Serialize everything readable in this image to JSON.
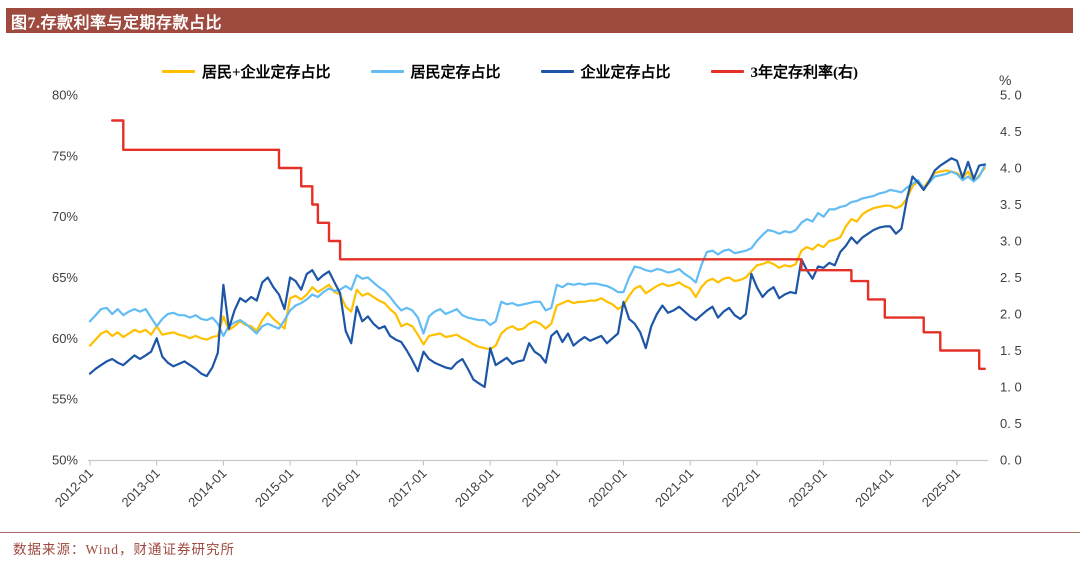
{
  "header": {
    "title": "图7.存款利率与定期存款占比",
    "bg_color": "#9E4A3F",
    "text_color": "#FFFFFF"
  },
  "footer": {
    "source_label": "数据来源：Wind，财通证券研究所",
    "color": "#9E4A3F"
  },
  "chart_data": {
    "type": "line",
    "title": "图7.存款利率与定期存款占比",
    "x_start": "2012-01",
    "x_end": "2025-06",
    "x_tick_labels": [
      "2012-01",
      "2013-01",
      "2014-01",
      "2015-01",
      "2016-01",
      "2017-01",
      "2018-01",
      "2019-01",
      "2020-01",
      "2021-01",
      "2022-01",
      "2023-01",
      "2024-01",
      "2025-01"
    ],
    "left_axis": {
      "ticks": [
        "80%",
        "75%",
        "70%",
        "65%",
        "60%",
        "55%",
        "50%"
      ],
      "tick_values": [
        80,
        75,
        70,
        65,
        60,
        55,
        50
      ],
      "min": 50,
      "max": 80
    },
    "right_axis": {
      "unit_label": "%",
      "ticks": [
        "5. 0",
        "4. 5",
        "4. 0",
        "3. 5",
        "3. 0",
        "2. 5",
        "2. 0",
        "1. 5",
        "1. 0",
        "0. 5",
        "0. 0"
      ],
      "tick_values": [
        5.0,
        4.5,
        4.0,
        3.5,
        3.0,
        2.5,
        2.0,
        1.5,
        1.0,
        0.5,
        0.0
      ],
      "min": 0,
      "max": 5
    },
    "grid": "off",
    "legend_position": "top",
    "legend": [
      {
        "id": "combined",
        "label": "居民+企业定存占比",
        "color": "#FFC000"
      },
      {
        "id": "resident",
        "label": "居民定存占比",
        "color": "#63BCF3"
      },
      {
        "id": "enterprise",
        "label": "企业定存占比",
        "color": "#1D56A6"
      },
      {
        "id": "rate3y",
        "label": "3年定存利率(右)",
        "color": "#E43026"
      }
    ],
    "series": [
      {
        "id": "combined",
        "name": "居民+企业定存占比",
        "axis": "left",
        "color": "#FFC000",
        "start_month_index": 0,
        "values": [
          59.4,
          59.9,
          60.4,
          60.6,
          60.2,
          60.5,
          60.1,
          60.4,
          60.7,
          60.5,
          60.7,
          60.3,
          61.0,
          60.3,
          60.4,
          60.5,
          60.3,
          60.2,
          60.0,
          60.2,
          60.0,
          59.9,
          60.1,
          60.2,
          61.8,
          60.7,
          61.0,
          61.4,
          61.1,
          61.0,
          60.6,
          61.5,
          62.1,
          61.6,
          61.2,
          60.8,
          63.3,
          63.5,
          63.2,
          63.6,
          64.2,
          63.8,
          64.1,
          64.4,
          63.8,
          63.6,
          62.6,
          62.2,
          64.0,
          63.5,
          63.7,
          63.4,
          63.1,
          62.9,
          62.4,
          62.0,
          61.0,
          61.2,
          61.0,
          60.3,
          59.5,
          60.2,
          60.3,
          60.4,
          60.1,
          60.2,
          60.3,
          60.0,
          59.8,
          59.5,
          59.3,
          59.2,
          59.1,
          59.4,
          60.4,
          60.8,
          61.0,
          60.7,
          60.8,
          61.2,
          61.4,
          61.2,
          60.8,
          61.2,
          62.7,
          62.9,
          63.1,
          62.9,
          63.0,
          63.0,
          63.1,
          63.1,
          63.3,
          63.0,
          62.8,
          62.4,
          62.7,
          63.5,
          64.1,
          64.3,
          63.7,
          64.0,
          64.3,
          64.5,
          64.3,
          64.4,
          64.6,
          64.3,
          64.1,
          63.4,
          64.2,
          64.7,
          64.9,
          64.6,
          64.9,
          65.0,
          64.7,
          64.8,
          65.0,
          65.5,
          66.0,
          66.1,
          66.3,
          66.1,
          65.8,
          66.0,
          65.9,
          66.1,
          67.2,
          67.5,
          67.3,
          67.7,
          67.5,
          68.0,
          68.1,
          68.3,
          69.2,
          69.8,
          69.6,
          70.2,
          70.5,
          70.7,
          70.8,
          70.9,
          70.9,
          70.7,
          70.9,
          71.5,
          72.5,
          72.9,
          72.4,
          73.0,
          73.6,
          73.7,
          73.8,
          73.7,
          73.6,
          73.2,
          73.7,
          72.9,
          73.4,
          74.0
        ]
      },
      {
        "id": "resident",
        "name": "居民定存占比",
        "axis": "left",
        "color": "#63BCF3",
        "start_month_index": 0,
        "values": [
          61.4,
          61.9,
          62.4,
          62.5,
          62.0,
          62.4,
          61.9,
          62.2,
          62.4,
          62.2,
          62.4,
          61.7,
          61.0,
          61.6,
          62.0,
          62.1,
          61.9,
          61.9,
          61.7,
          61.9,
          61.6,
          61.5,
          61.7,
          61.2,
          60.2,
          61.0,
          61.3,
          61.5,
          61.2,
          60.8,
          60.4,
          61.0,
          61.2,
          61.0,
          60.8,
          61.5,
          62.3,
          62.7,
          62.9,
          63.2,
          63.6,
          63.4,
          63.8,
          64.1,
          63.9,
          64.0,
          64.3,
          64.0,
          65.2,
          64.9,
          65.0,
          64.6,
          64.2,
          63.9,
          63.4,
          62.8,
          62.3,
          62.5,
          62.3,
          61.7,
          60.4,
          61.8,
          62.2,
          62.4,
          62.0,
          62.2,
          62.4,
          61.9,
          61.7,
          61.6,
          61.5,
          61.5,
          61.1,
          61.4,
          63.0,
          62.8,
          62.9,
          62.7,
          62.8,
          62.9,
          63.0,
          63.0,
          62.3,
          62.5,
          64.4,
          64.2,
          64.5,
          64.4,
          64.5,
          64.4,
          64.5,
          64.5,
          64.4,
          64.3,
          64.1,
          63.8,
          63.8,
          65.0,
          65.9,
          65.8,
          65.6,
          65.5,
          65.7,
          65.6,
          65.4,
          65.5,
          65.7,
          65.3,
          65.0,
          64.6,
          66.0,
          67.1,
          67.2,
          66.9,
          67.2,
          67.3,
          67.0,
          67.1,
          67.2,
          67.4,
          68.0,
          68.5,
          68.9,
          68.8,
          68.6,
          68.8,
          68.7,
          68.9,
          69.5,
          69.8,
          69.6,
          70.3,
          70.0,
          70.6,
          70.6,
          70.8,
          70.9,
          71.2,
          71.3,
          71.5,
          71.6,
          71.7,
          71.9,
          72.0,
          72.2,
          72.1,
          72.0,
          72.4,
          72.7,
          73.0,
          72.3,
          72.8,
          73.3,
          73.4,
          73.5,
          73.7,
          73.5,
          73.0,
          73.3,
          72.9,
          73.3,
          74.2
        ]
      },
      {
        "id": "enterprise",
        "name": "企业定存占比",
        "axis": "left",
        "color": "#1D56A6",
        "start_month_index": 0,
        "values": [
          57.1,
          57.5,
          57.8,
          58.1,
          58.3,
          58.0,
          57.8,
          58.2,
          58.6,
          58.3,
          58.6,
          58.9,
          60.0,
          58.5,
          58.0,
          57.7,
          57.9,
          58.1,
          57.8,
          57.5,
          57.1,
          56.9,
          57.6,
          58.8,
          64.4,
          60.8,
          62.3,
          63.3,
          63.0,
          63.4,
          63.1,
          64.6,
          65.0,
          64.2,
          63.6,
          62.4,
          65.0,
          64.7,
          64.0,
          65.3,
          65.6,
          64.8,
          65.2,
          65.5,
          64.6,
          63.7,
          60.6,
          59.6,
          62.6,
          61.4,
          61.8,
          61.2,
          60.8,
          61.0,
          60.2,
          59.9,
          59.7,
          59.0,
          58.2,
          57.3,
          58.9,
          58.3,
          58.0,
          57.8,
          57.6,
          57.5,
          58.0,
          58.3,
          57.5,
          56.6,
          56.3,
          56.0,
          59.2,
          57.8,
          58.1,
          58.4,
          57.9,
          58.1,
          58.2,
          59.6,
          58.9,
          58.6,
          58.0,
          60.2,
          60.6,
          59.7,
          60.4,
          59.4,
          59.8,
          60.1,
          59.8,
          60.0,
          60.2,
          59.6,
          60.0,
          60.4,
          63.0,
          61.6,
          61.2,
          60.5,
          59.2,
          61.0,
          62.0,
          62.7,
          62.1,
          62.3,
          62.6,
          62.2,
          61.8,
          61.5,
          61.9,
          62.3,
          62.6,
          61.7,
          62.2,
          62.5,
          61.9,
          61.6,
          62.0,
          65.3,
          64.2,
          63.4,
          63.9,
          64.2,
          63.3,
          63.6,
          63.8,
          63.7,
          66.5,
          65.6,
          64.9,
          65.9,
          65.8,
          66.2,
          66.0,
          67.1,
          67.6,
          68.3,
          67.8,
          68.3,
          68.6,
          68.9,
          69.1,
          69.2,
          69.2,
          68.6,
          69.0,
          71.5,
          73.3,
          72.8,
          72.2,
          72.9,
          73.8,
          74.2,
          74.5,
          74.8,
          74.6,
          73.2,
          74.5,
          73.1,
          74.2,
          74.3
        ]
      },
      {
        "id": "rate3y",
        "name": "3年定存利率(右)",
        "axis": "right",
        "color": "#E43026",
        "style": "step",
        "step_breakpoints": [
          [
            4,
            4.65
          ],
          [
            6,
            4.25
          ],
          [
            34,
            4.0
          ],
          [
            38,
            3.75
          ],
          [
            40,
            3.5
          ],
          [
            41,
            3.25
          ],
          [
            43,
            3.0
          ],
          [
            45,
            2.75
          ],
          [
            128,
            2.6
          ],
          [
            137,
            2.45
          ],
          [
            140,
            2.2
          ],
          [
            143,
            1.95
          ],
          [
            150,
            1.75
          ],
          [
            153,
            1.5
          ],
          [
            160,
            1.25
          ]
        ],
        "end_month_index": 161
      }
    ]
  }
}
